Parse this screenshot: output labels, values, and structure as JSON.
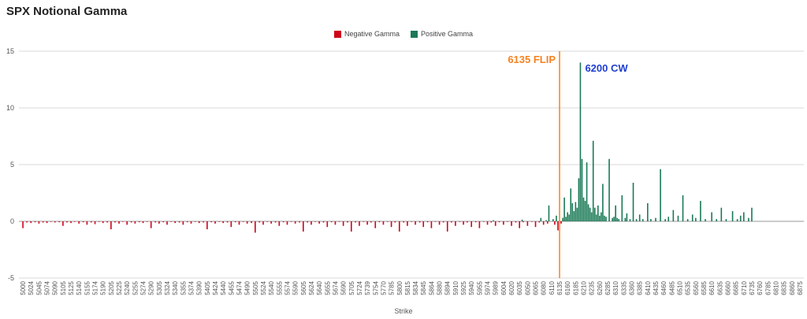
{
  "chart_data": {
    "type": "bar",
    "title": "SPX Notional Gamma",
    "xlabel": "Strike",
    "ylabel": "",
    "ylim": [
      -5,
      15
    ],
    "yticks": [
      -5,
      0,
      5,
      10,
      15
    ],
    "grid": true,
    "legend_position": "top-center",
    "colors": {
      "negative": "#d0021b",
      "positive": "#1a7a56",
      "flip": "#f5821f",
      "cw": "#1f3fd0"
    },
    "x_tick_labels": [
      "5000",
      "5024",
      "5045",
      "5074",
      "5090",
      "5105",
      "5125",
      "5140",
      "5155",
      "5174",
      "5190",
      "5205",
      "5225",
      "5240",
      "5255",
      "5274",
      "5290",
      "5305",
      "5324",
      "5340",
      "5355",
      "5374",
      "5390",
      "5405",
      "5424",
      "5440",
      "5455",
      "5474",
      "5490",
      "5505",
      "5524",
      "5540",
      "5555",
      "5574",
      "5590",
      "5605",
      "5624",
      "5640",
      "5655",
      "5674",
      "5690",
      "5705",
      "5724",
      "5739",
      "5754",
      "5770",
      "5785",
      "5800",
      "5815",
      "5834",
      "5845",
      "5864",
      "5880",
      "5894",
      "5910",
      "5925",
      "5940",
      "5955",
      "5974",
      "5989",
      "6004",
      "6020",
      "6035",
      "6050",
      "6065",
      "6080",
      "6110",
      "6135",
      "6160",
      "6185",
      "6210",
      "6235",
      "6260",
      "6285",
      "6310",
      "6335",
      "6360",
      "6385",
      "6410",
      "6435",
      "6460",
      "6485",
      "6510",
      "6535",
      "6560",
      "6585",
      "6610",
      "6635",
      "6660",
      "6685",
      "6710",
      "6735",
      "6760",
      "6785",
      "6810",
      "6835",
      "6860",
      "6875"
    ],
    "series": [
      {
        "name": "Negative Gamma",
        "points": [
          [
            5000,
            -0.6
          ],
          [
            5012,
            -0.1
          ],
          [
            5024,
            -0.15
          ],
          [
            5035,
            -0.08
          ],
          [
            5045,
            -0.2
          ],
          [
            5060,
            -0.1
          ],
          [
            5074,
            -0.15
          ],
          [
            5082,
            -0.05
          ],
          [
            5090,
            -0.1
          ],
          [
            5098,
            -0.08
          ],
          [
            5105,
            -0.4
          ],
          [
            5115,
            -0.1
          ],
          [
            5125,
            -0.15
          ],
          [
            5132,
            -0.05
          ],
          [
            5140,
            -0.2
          ],
          [
            5148,
            -0.08
          ],
          [
            5155,
            -0.3
          ],
          [
            5165,
            -0.1
          ],
          [
            5174,
            -0.25
          ],
          [
            5182,
            -0.05
          ],
          [
            5190,
            -0.15
          ],
          [
            5198,
            -0.1
          ],
          [
            5205,
            -0.7
          ],
          [
            5215,
            -0.1
          ],
          [
            5225,
            -0.2
          ],
          [
            5232,
            -0.05
          ],
          [
            5240,
            -0.3
          ],
          [
            5248,
            -0.1
          ],
          [
            5255,
            -0.2
          ],
          [
            5265,
            -0.08
          ],
          [
            5274,
            -0.15
          ],
          [
            5282,
            -0.05
          ],
          [
            5290,
            -0.6
          ],
          [
            5298,
            -0.1
          ],
          [
            5305,
            -0.2
          ],
          [
            5315,
            -0.08
          ],
          [
            5324,
            -0.3
          ],
          [
            5332,
            -0.05
          ],
          [
            5340,
            -0.15
          ],
          [
            5348,
            -0.1
          ],
          [
            5355,
            -0.3
          ],
          [
            5365,
            -0.08
          ],
          [
            5374,
            -0.2
          ],
          [
            5382,
            -0.05
          ],
          [
            5390,
            -0.15
          ],
          [
            5398,
            -0.1
          ],
          [
            5405,
            -0.7
          ],
          [
            5415,
            -0.08
          ],
          [
            5424,
            -0.2
          ],
          [
            5432,
            -0.05
          ],
          [
            5440,
            -0.15
          ],
          [
            5448,
            -0.1
          ],
          [
            5455,
            -0.5
          ],
          [
            5465,
            -0.08
          ],
          [
            5474,
            -0.3
          ],
          [
            5482,
            -0.05
          ],
          [
            5490,
            -0.2
          ],
          [
            5498,
            -0.15
          ],
          [
            5505,
            -1.0
          ],
          [
            5515,
            -0.1
          ],
          [
            5524,
            -0.3
          ],
          [
            5532,
            -0.05
          ],
          [
            5540,
            -0.2
          ],
          [
            5548,
            -0.1
          ],
          [
            5555,
            -0.4
          ],
          [
            5565,
            -0.08
          ],
          [
            5574,
            -0.3
          ],
          [
            5582,
            -0.05
          ],
          [
            5590,
            -0.2
          ],
          [
            5598,
            -0.1
          ],
          [
            5605,
            -0.9
          ],
          [
            5615,
            -0.1
          ],
          [
            5624,
            -0.3
          ],
          [
            5632,
            -0.05
          ],
          [
            5640,
            -0.2
          ],
          [
            5648,
            -0.1
          ],
          [
            5655,
            -0.5
          ],
          [
            5665,
            -0.08
          ],
          [
            5674,
            -0.3
          ],
          [
            5682,
            -0.05
          ],
          [
            5690,
            -0.4
          ],
          [
            5698,
            -0.1
          ],
          [
            5705,
            -0.9
          ],
          [
            5715,
            -0.1
          ],
          [
            5724,
            -0.4
          ],
          [
            5732,
            -0.05
          ],
          [
            5739,
            -0.3
          ],
          [
            5746,
            -0.1
          ],
          [
            5754,
            -0.6
          ],
          [
            5762,
            -0.08
          ],
          [
            5770,
            -0.3
          ],
          [
            5778,
            -0.05
          ],
          [
            5785,
            -0.5
          ],
          [
            5792,
            -0.1
          ],
          [
            5800,
            -0.9
          ],
          [
            5808,
            -0.1
          ],
          [
            5815,
            -0.4
          ],
          [
            5825,
            -0.05
          ],
          [
            5834,
            -0.3
          ],
          [
            5840,
            -0.1
          ],
          [
            5845,
            -0.5
          ],
          [
            5855,
            -0.08
          ],
          [
            5864,
            -0.6
          ],
          [
            5872,
            -0.05
          ],
          [
            5880,
            -0.3
          ],
          [
            5887,
            -0.1
          ],
          [
            5894,
            -0.9
          ],
          [
            5902,
            -0.1
          ],
          [
            5910,
            -0.4
          ],
          [
            5918,
            -0.05
          ],
          [
            5925,
            -0.3
          ],
          [
            5932,
            -0.1
          ],
          [
            5940,
            -0.5
          ],
          [
            5948,
            -0.08
          ],
          [
            5955,
            -0.6
          ],
          [
            5965,
            -0.05
          ],
          [
            5974,
            -0.3
          ],
          [
            5981,
            -0.1
          ],
          [
            5989,
            -0.4
          ],
          [
            5996,
            -0.08
          ],
          [
            6004,
            -0.3
          ],
          [
            6012,
            -0.05
          ],
          [
            6020,
            -0.4
          ],
          [
            6028,
            -0.1
          ],
          [
            6035,
            -0.6
          ],
          [
            6042,
            -0.08
          ],
          [
            6050,
            -0.4
          ],
          [
            6058,
            -0.05
          ],
          [
            6065,
            -0.5
          ],
          [
            6072,
            -0.1
          ],
          [
            6080,
            -0.3
          ],
          [
            6095,
            -0.2
          ],
          [
            6120,
            -0.3
          ],
          [
            6130,
            -0.8
          ],
          [
            6140,
            -0.2
          ]
        ]
      },
      {
        "name": "Positive Gamma",
        "points": [
          [
            5985,
            0.1
          ],
          [
            6040,
            0.15
          ],
          [
            6075,
            0.3
          ],
          [
            6090,
            0.1
          ],
          [
            6100,
            1.4
          ],
          [
            6115,
            0.2
          ],
          [
            6125,
            0.5
          ],
          [
            6145,
            0.3
          ],
          [
            6150,
            2.1
          ],
          [
            6155,
            0.4
          ],
          [
            6160,
            0.8
          ],
          [
            6165,
            0.6
          ],
          [
            6170,
            2.9
          ],
          [
            6175,
            1.6
          ],
          [
            6180,
            0.9
          ],
          [
            6185,
            1.7
          ],
          [
            6190,
            1.2
          ],
          [
            6195,
            3.8
          ],
          [
            6200,
            14.0
          ],
          [
            6205,
            5.5
          ],
          [
            6210,
            2.1
          ],
          [
            6215,
            1.8
          ],
          [
            6220,
            5.2
          ],
          [
            6225,
            1.5
          ],
          [
            6230,
            1.2
          ],
          [
            6235,
            0.8
          ],
          [
            6240,
            7.1
          ],
          [
            6245,
            1.2
          ],
          [
            6250,
            0.6
          ],
          [
            6255,
            1.4
          ],
          [
            6260,
            0.5
          ],
          [
            6265,
            0.8
          ],
          [
            6270,
            3.3
          ],
          [
            6275,
            0.5
          ],
          [
            6280,
            0.4
          ],
          [
            6290,
            5.5
          ],
          [
            6300,
            0.3
          ],
          [
            6305,
            0.4
          ],
          [
            6310,
            1.4
          ],
          [
            6315,
            0.3
          ],
          [
            6320,
            0.2
          ],
          [
            6330,
            2.3
          ],
          [
            6340,
            0.3
          ],
          [
            6345,
            0.7
          ],
          [
            6355,
            0.2
          ],
          [
            6365,
            3.4
          ],
          [
            6375,
            0.2
          ],
          [
            6385,
            0.6
          ],
          [
            6395,
            0.2
          ],
          [
            6410,
            1.6
          ],
          [
            6420,
            0.2
          ],
          [
            6435,
            0.3
          ],
          [
            6450,
            4.6
          ],
          [
            6465,
            0.2
          ],
          [
            6475,
            0.4
          ],
          [
            6490,
            1.0
          ],
          [
            6505,
            0.5
          ],
          [
            6520,
            2.3
          ],
          [
            6535,
            0.2
          ],
          [
            6550,
            0.6
          ],
          [
            6560,
            0.3
          ],
          [
            6575,
            1.8
          ],
          [
            6590,
            0.2
          ],
          [
            6610,
            0.8
          ],
          [
            6625,
            0.2
          ],
          [
            6640,
            1.2
          ],
          [
            6655,
            0.2
          ],
          [
            6675,
            0.9
          ],
          [
            6690,
            0.2
          ],
          [
            6700,
            0.5
          ],
          [
            6710,
            0.8
          ],
          [
            6725,
            0.3
          ],
          [
            6735,
            1.2
          ]
        ]
      }
    ],
    "annotations": [
      {
        "label": "6135 FLIP",
        "x": 6135
      },
      {
        "label": "6200 CW",
        "x": 6200
      }
    ]
  }
}
